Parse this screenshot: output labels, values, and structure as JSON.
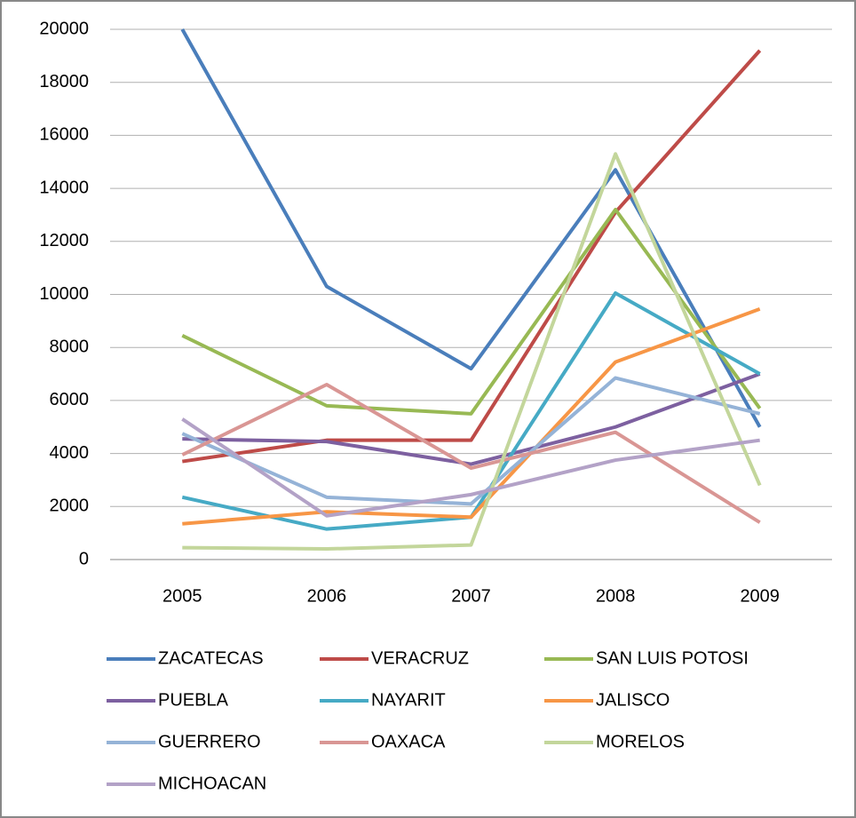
{
  "chart_data": {
    "type": "line",
    "categories": [
      "2005",
      "2006",
      "2007",
      "2008",
      "2009"
    ],
    "series": [
      {
        "name": "ZACATECAS",
        "color": "#4a7ebb",
        "values": [
          20000,
          10300,
          7200,
          14700,
          5000
        ]
      },
      {
        "name": "VERACRUZ",
        "color": "#be4b48",
        "values": [
          3700,
          4500,
          4500,
          13100,
          19200
        ]
      },
      {
        "name": "SAN LUIS POTOSI",
        "color": "#98b954",
        "values": [
          8450,
          5800,
          5500,
          13200,
          5700
        ]
      },
      {
        "name": "PUEBLA",
        "color": "#7d60a0",
        "values": [
          4550,
          4450,
          3600,
          5000,
          7000
        ]
      },
      {
        "name": "NAYARIT",
        "color": "#46aac5",
        "values": [
          2350,
          1150,
          1600,
          10050,
          7000
        ]
      },
      {
        "name": "JALISCO",
        "color": "#f79646",
        "values": [
          1350,
          1800,
          1600,
          7450,
          9450
        ]
      },
      {
        "name": "GUERRERO",
        "color": "#95b3d7",
        "values": [
          4750,
          2350,
          2100,
          6850,
          5500
        ]
      },
      {
        "name": "OAXACA",
        "color": "#d99694",
        "values": [
          3950,
          6600,
          3450,
          4800,
          1400
        ]
      },
      {
        "name": "MORELOS",
        "color": "#c3d69b",
        "values": [
          450,
          400,
          550,
          15300,
          2800
        ]
      },
      {
        "name": "MICHOACAN",
        "color": "#b3a2c7",
        "values": [
          5300,
          1650,
          2450,
          3750,
          4500
        ]
      }
    ],
    "ylim": [
      0,
      20000
    ],
    "yticks": [
      0,
      2000,
      4000,
      6000,
      8000,
      10000,
      12000,
      14000,
      16000,
      18000,
      20000
    ],
    "grid": true,
    "legend": "bottom"
  }
}
